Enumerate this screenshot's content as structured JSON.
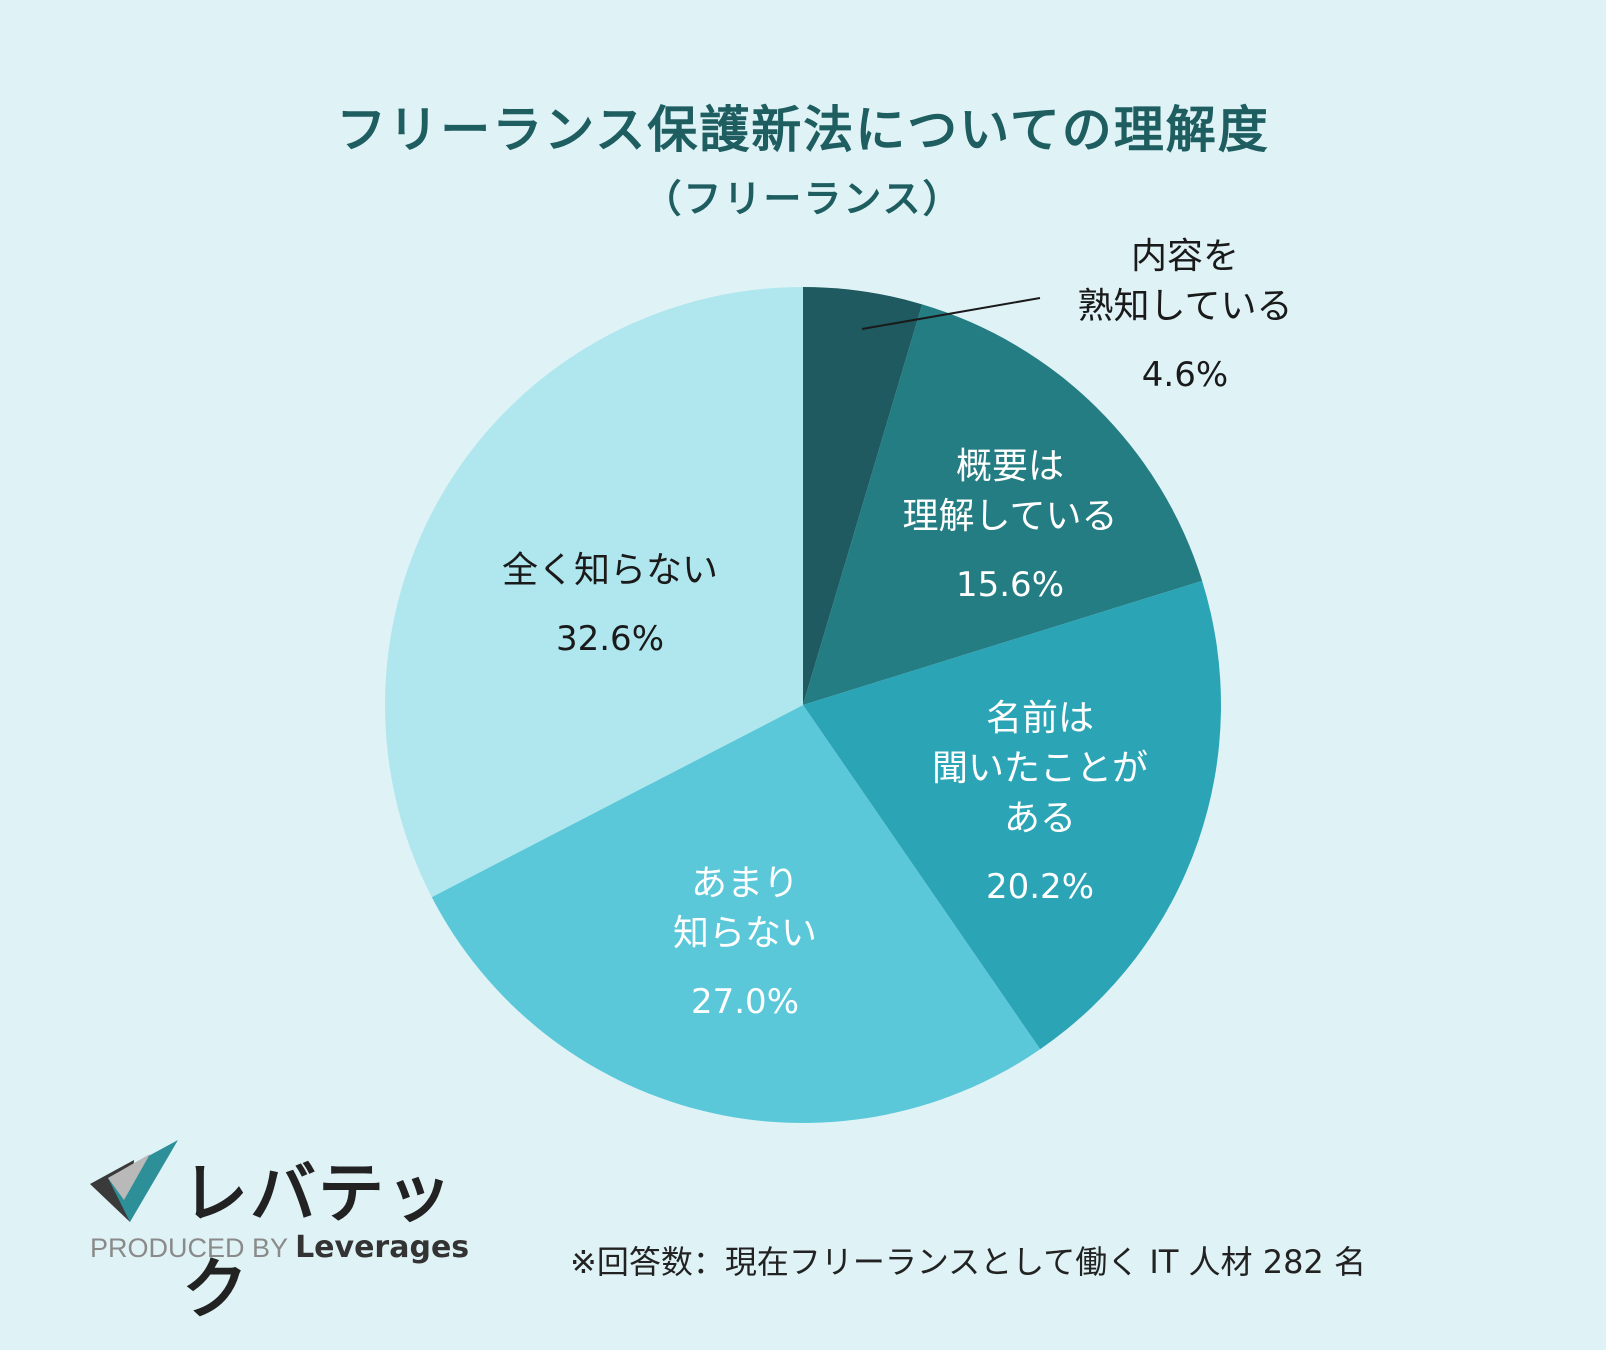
{
  "chart_data": {
    "type": "pie",
    "title": "フリーランス保護新法についての理解度",
    "subtitle": "（フリーランス）",
    "slices": [
      {
        "label": "内容を熟知している",
        "label_lines": [
          "内容を",
          "熟知している"
        ],
        "value": 4.6,
        "value_label": "4.6%",
        "color": "#1e5a5f",
        "text_color": "#1a1a1a"
      },
      {
        "label": "概要は理解している",
        "label_lines": [
          "概要は",
          "理解している"
        ],
        "value": 15.6,
        "value_label": "15.6%",
        "color": "#247d83",
        "text_color": "#ffffff"
      },
      {
        "label": "名前は聞いたことがある",
        "label_lines": [
          "名前は",
          "聞いたことが",
          "ある"
        ],
        "value": 20.2,
        "value_label": "20.2%",
        "color": "#2ba4b6",
        "text_color": "#ffffff"
      },
      {
        "label": "あまり知らない",
        "label_lines": [
          "あまり",
          "知らない"
        ],
        "value": 27.0,
        "value_label": "27.0%",
        "color": "#5ac8d9",
        "text_color": "#ffffff"
      },
      {
        "label": "全く知らない",
        "label_lines": [
          "全く知らない"
        ],
        "value": 32.6,
        "value_label": "32.6%",
        "color": "#b0e6ee",
        "text_color": "#1a1a1a"
      }
    ]
  },
  "footer": {
    "logo_text": "レバテック",
    "produced_by": "PRODUCED BY",
    "brand": "Leverages",
    "note": "※回答数：現在フリーランスとして働く IT 人材 282 名"
  },
  "colors": {
    "background": "#dff3f6",
    "title": "#1e5d60"
  }
}
